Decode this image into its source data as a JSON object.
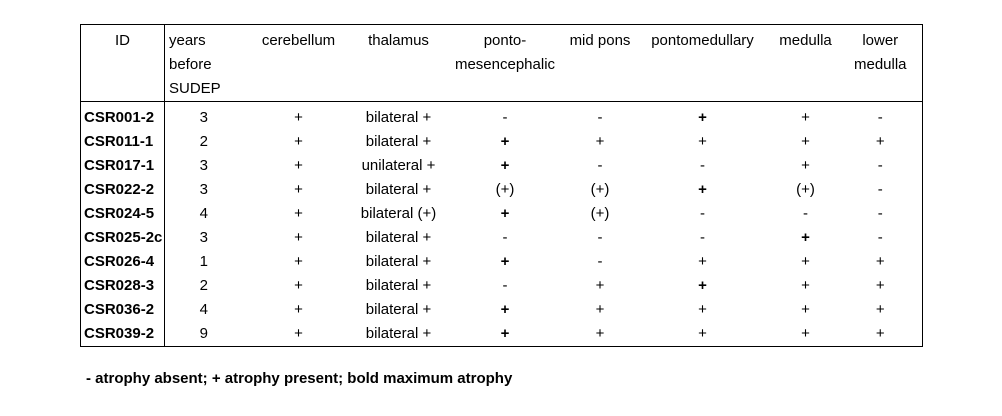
{
  "headers": [
    "ID",
    "years\nbefore\nSUDEP",
    "cerebellum",
    "thalamus",
    "ponto-\nmesencephalic",
    "mid pons",
    "pontomedullary",
    "medulla",
    "lower\nmedulla"
  ],
  "rows": [
    {
      "id": "CSR001-2",
      "cells": [
        {
          "v": "3"
        },
        {
          "v": "+"
        },
        {
          "v": "bilateral +"
        },
        {
          "v": "-"
        },
        {
          "v": "-"
        },
        {
          "v": "+",
          "b": true
        },
        {
          "v": "+"
        },
        {
          "v": "-"
        }
      ]
    },
    {
      "id": "CSR011-1",
      "cells": [
        {
          "v": "2"
        },
        {
          "v": "+"
        },
        {
          "v": "bilateral +"
        },
        {
          "v": "+",
          "b": true
        },
        {
          "v": "+"
        },
        {
          "v": "+"
        },
        {
          "v": "+"
        },
        {
          "v": "+"
        }
      ]
    },
    {
      "id": "CSR017-1",
      "cells": [
        {
          "v": "3"
        },
        {
          "v": "+"
        },
        {
          "v": "unilateral +"
        },
        {
          "v": "+",
          "b": true
        },
        {
          "v": "-"
        },
        {
          "v": "-"
        },
        {
          "v": "+"
        },
        {
          "v": "-"
        }
      ]
    },
    {
      "id": "CSR022-2",
      "cells": [
        {
          "v": "3"
        },
        {
          "v": "+"
        },
        {
          "v": "bilateral +"
        },
        {
          "v": "(+)"
        },
        {
          "v": "(+)"
        },
        {
          "v": "+",
          "b": true
        },
        {
          "v": "(+)"
        },
        {
          "v": "-"
        }
      ]
    },
    {
      "id": "CSR024-5",
      "cells": [
        {
          "v": "4"
        },
        {
          "v": "+"
        },
        {
          "v": "bilateral (+)"
        },
        {
          "v": "+",
          "b": true
        },
        {
          "v": "(+)"
        },
        {
          "v": "-"
        },
        {
          "v": "-"
        },
        {
          "v": "-"
        }
      ]
    },
    {
      "id": "CSR025-2c",
      "cells": [
        {
          "v": "3"
        },
        {
          "v": "+"
        },
        {
          "v": "bilateral +"
        },
        {
          "v": "-"
        },
        {
          "v": "-"
        },
        {
          "v": "-"
        },
        {
          "v": "+",
          "b": true
        },
        {
          "v": "-"
        }
      ]
    },
    {
      "id": "CSR026-4",
      "cells": [
        {
          "v": "1"
        },
        {
          "v": "+"
        },
        {
          "v": "bilateral +"
        },
        {
          "v": "+",
          "b": true
        },
        {
          "v": "-"
        },
        {
          "v": "+"
        },
        {
          "v": "+"
        },
        {
          "v": "+"
        }
      ]
    },
    {
      "id": "CSR028-3",
      "cells": [
        {
          "v": "2"
        },
        {
          "v": "+"
        },
        {
          "v": "bilateral +"
        },
        {
          "v": "-"
        },
        {
          "v": "+"
        },
        {
          "v": "+",
          "b": true
        },
        {
          "v": "+"
        },
        {
          "v": "+"
        }
      ]
    },
    {
      "id": "CSR036-2",
      "cells": [
        {
          "v": "4"
        },
        {
          "v": "+"
        },
        {
          "v": "bilateral +"
        },
        {
          "v": "+",
          "b": true
        },
        {
          "v": "+"
        },
        {
          "v": "+"
        },
        {
          "v": "+"
        },
        {
          "v": "+"
        }
      ]
    },
    {
      "id": "CSR039-2",
      "cells": [
        {
          "v": "9"
        },
        {
          "v": "+"
        },
        {
          "v": "bilateral +"
        },
        {
          "v": "+",
          "b": true
        },
        {
          "v": "+"
        },
        {
          "v": "+"
        },
        {
          "v": "+"
        },
        {
          "v": "+"
        }
      ]
    }
  ],
  "footnote": "- atrophy absent; + atrophy present; bold maximum atrophy"
}
